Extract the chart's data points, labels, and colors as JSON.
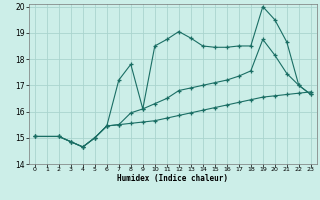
{
  "title": "",
  "xlabel": "Humidex (Indice chaleur)",
  "bg_color": "#cceee8",
  "grid_color": "#aad4ce",
  "line_color": "#1a6e64",
  "xlim": [
    -0.5,
    23.5
  ],
  "ylim": [
    14,
    20.1
  ],
  "xticks": [
    0,
    1,
    2,
    3,
    4,
    5,
    6,
    7,
    8,
    9,
    10,
    11,
    12,
    13,
    14,
    15,
    16,
    17,
    18,
    19,
    20,
    21,
    22,
    23
  ],
  "yticks": [
    14,
    15,
    16,
    17,
    18,
    19,
    20
  ],
  "line1_x": [
    0,
    2,
    3,
    4,
    5,
    6,
    7,
    8,
    9,
    10,
    11,
    12,
    13,
    14,
    15,
    16,
    17,
    18,
    19,
    20,
    21,
    22,
    23
  ],
  "line1_y": [
    15.05,
    15.05,
    14.85,
    14.65,
    15.0,
    15.45,
    15.5,
    15.55,
    15.6,
    15.65,
    15.75,
    15.85,
    15.95,
    16.05,
    16.15,
    16.25,
    16.35,
    16.45,
    16.55,
    16.6,
    16.65,
    16.7,
    16.75
  ],
  "line2_x": [
    0,
    2,
    3,
    4,
    5,
    6,
    7,
    8,
    9,
    10,
    11,
    12,
    13,
    14,
    15,
    16,
    17,
    18,
    19,
    20,
    21,
    22,
    23
  ],
  "line2_y": [
    15.05,
    15.05,
    14.85,
    14.65,
    15.0,
    15.45,
    17.2,
    17.8,
    16.1,
    18.5,
    18.75,
    19.05,
    18.8,
    18.5,
    18.45,
    18.45,
    18.5,
    18.5,
    20.0,
    19.5,
    18.65,
    17.0,
    16.65
  ],
  "line3_x": [
    0,
    2,
    3,
    4,
    5,
    6,
    7,
    8,
    9,
    10,
    11,
    12,
    13,
    14,
    15,
    16,
    17,
    18,
    19,
    20,
    21,
    22,
    23
  ],
  "line3_y": [
    15.05,
    15.05,
    14.85,
    14.65,
    15.0,
    15.45,
    15.5,
    15.95,
    16.1,
    16.3,
    16.5,
    16.8,
    16.9,
    17.0,
    17.1,
    17.2,
    17.35,
    17.55,
    18.75,
    18.15,
    17.45,
    17.0,
    16.65
  ]
}
